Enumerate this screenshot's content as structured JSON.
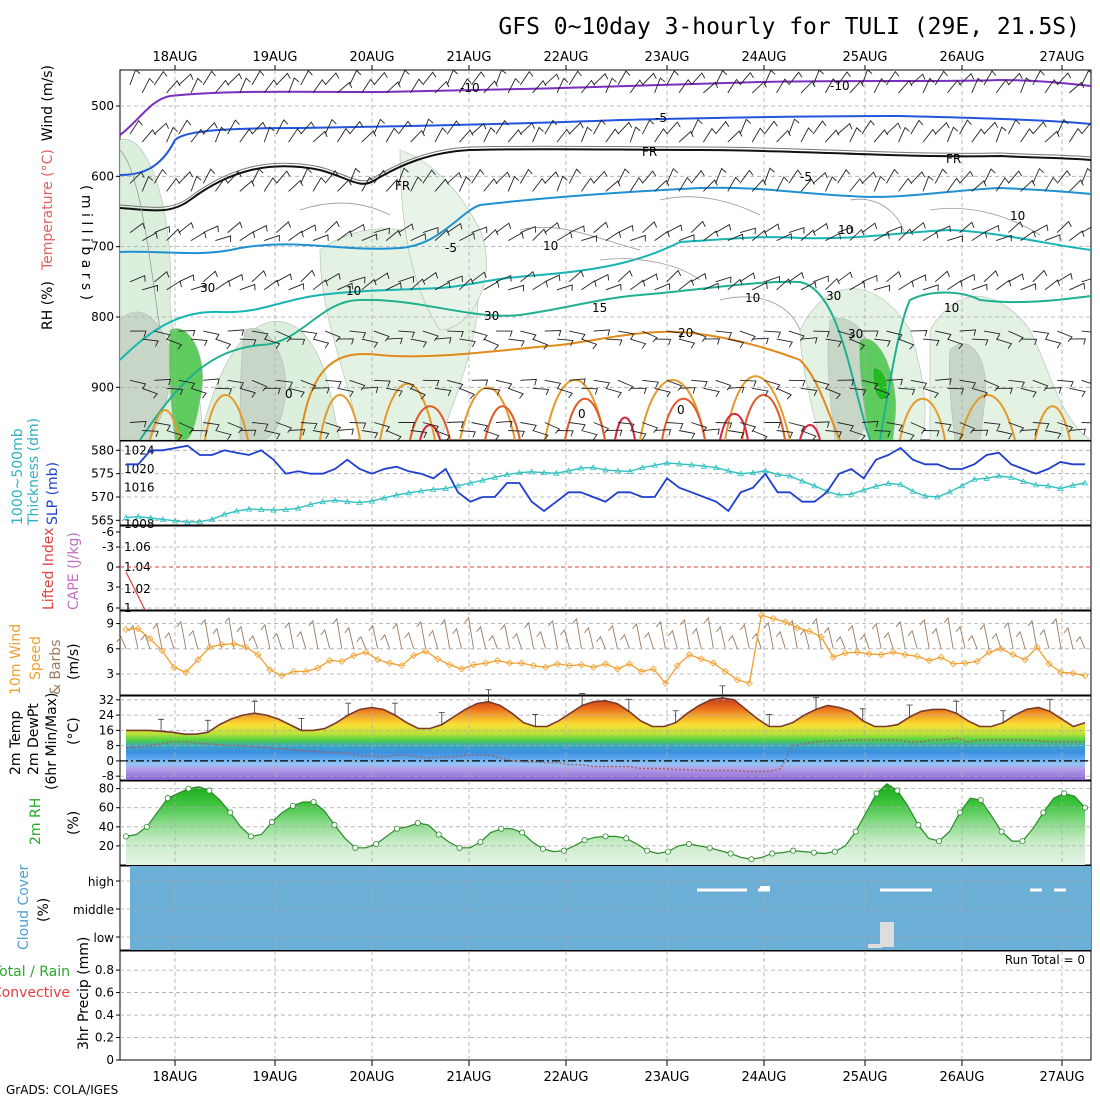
{
  "title": "GFS 0~10day 3-hourly for TULI (29E, 21.5S)",
  "credit": "GrADS: COLA/IGES",
  "dates": [
    "18AUG",
    "19AUG",
    "20AUG",
    "21AUG",
    "22AUG",
    "23AUG",
    "24AUG",
    "25AUG",
    "26AUG",
    "27AUG"
  ],
  "colors": {
    "slp": "#1f3fcf",
    "thickness": "#30c0c0",
    "lifted": "#e04040",
    "cape": "#c070c0",
    "wind_speed": "#f0a030",
    "barb": "#9a7a60",
    "dewpoint": "#a06060",
    "rh": "#3cbf3c",
    "cloud_bg": "#6baed6",
    "grid": "#aaaaaa"
  },
  "panels": {
    "upper": {
      "ylabel_wind": "Wind (m/s)",
      "ylabel_temp": "Temperature (°C)",
      "ylabel_rh": "RH (%)",
      "ylabel_mb": "( m i l l i b a r s )",
      "contour_labels": [
        "-10",
        "-10",
        "-5",
        "FR",
        "FR",
        "FR",
        "-5",
        "-5",
        "10",
        "10",
        "15",
        "20",
        "0",
        "0",
        "10",
        "30",
        "30",
        "10",
        "10",
        "10",
        "30",
        "0",
        "30"
      ]
    },
    "thickness": {
      "ylabel_a": "1000~500mb",
      "ylabel_b": "Thickness (dm)",
      "ylabel_c": "SLP (mb)"
    },
    "lifted": {
      "ylabel_a": "Lifted Index",
      "ylabel_b": "CAPE (J/kg)"
    },
    "wind": {
      "ylabel_a": "10m Wind",
      "ylabel_b": "Speed",
      "ylabel_c": "& Barbs",
      "unit": "(m/s)"
    },
    "temp": {
      "ylabel_a": "2m Temp",
      "ylabel_b": "2m DewPt",
      "ylabel_c": "(6hr Min/Max)",
      "unit": "(°C)"
    },
    "rh": {
      "ylabel_a": "2m RH",
      "unit": "(%)"
    },
    "cloud": {
      "ylabel_a": "Cloud Cover",
      "unit": "(%)",
      "levels": [
        "high",
        "middle",
        "low"
      ]
    },
    "precip": {
      "ylabel_a": "Total / Rain",
      "ylabel_b": "Convective",
      "ylabel_c": "3hr Precip (mm)",
      "run_total": "Run Total = 0"
    }
  },
  "chart_data": [
    {
      "type": "line",
      "title": "",
      "ylabel": "Thickness (dm)",
      "y_ticks": [
        "565",
        "570",
        "575",
        "580"
      ],
      "ylim": [
        564,
        582
      ],
      "series": [
        {
          "name": "1000~500mb Thickness (dm)",
          "values": [
            565.6,
            565.8,
            565.5,
            565.2,
            564.9,
            564.6,
            564.7,
            565.2,
            566.3,
            567.0,
            567.4,
            567.3,
            567.2,
            567.3,
            567.6,
            568.4,
            569.0,
            569.3,
            569.0,
            568.8,
            569.1,
            569.8,
            570.4,
            570.9,
            571.3,
            571.6,
            571.8,
            572.4,
            573.0,
            573.6,
            574.2,
            574.8,
            575.2,
            575.4,
            575.2,
            575.1,
            575.6,
            576.2,
            576.3,
            575.8,
            575.6,
            575.5,
            576.3,
            576.8,
            577.3,
            577.1,
            576.9,
            576.6,
            576.3,
            575.6,
            575.0,
            575.2,
            575.6,
            574.8,
            574.5,
            573.4,
            572.4,
            571.2,
            570.4,
            570.6,
            571.5,
            572.3,
            572.9,
            572.7,
            571.2,
            570.2,
            570.0,
            571.1,
            572.4,
            573.8,
            574.0,
            574.5,
            574.2,
            573.3,
            572.6,
            572.4,
            571.8,
            572.5,
            573.0
          ]
        }
      ]
    },
    {
      "type": "line",
      "title": "",
      "ylabel": "SLP (mb)",
      "y_ticks": [
        "1008",
        "1016",
        "1020",
        "1024"
      ],
      "ylim": [
        1008,
        1026
      ],
      "series": [
        {
          "name": "SLP (mb)",
          "values": [
            1021,
            1021,
            1024,
            1024,
            1024.5,
            1025,
            1023,
            1023,
            1024,
            1023.5,
            1023,
            1024,
            1022,
            1019,
            1019.5,
            1019,
            1019,
            1020,
            1022,
            1020,
            1019,
            1020,
            1020.5,
            1019.5,
            1019,
            1018,
            1020,
            1015,
            1013,
            1014,
            1014,
            1017,
            1017,
            1013,
            1011,
            1013,
            1015,
            1015,
            1014,
            1013,
            1015,
            1015,
            1014,
            1014,
            1018,
            1016,
            1015,
            1014,
            1013,
            1011,
            1015,
            1016,
            1019,
            1015,
            1015,
            1013,
            1013,
            1015,
            1019,
            1020,
            1018,
            1022,
            1023,
            1024.5,
            1022,
            1021,
            1021,
            1020,
            1020,
            1021,
            1023,
            1023.5,
            1021,
            1020,
            1019,
            1020,
            1021.5,
            1021,
            1021
          ]
        }
      ]
    },
    {
      "type": "line",
      "title": "",
      "ylabel": "Speed (m/s)",
      "y_ticks": [
        "3",
        "6",
        "9"
      ],
      "ylim": [
        0.5,
        10.5
      ],
      "series": [
        {
          "name": "10m Wind Speed",
          "values": [
            8.3,
            8.4,
            7.2,
            5.8,
            3.8,
            3.2,
            4.7,
            6.2,
            6.5,
            6.6,
            6.2,
            5.3,
            3.5,
            2.8,
            3.3,
            3.3,
            3.7,
            4.6,
            4.5,
            5.2,
            5.6,
            4.7,
            4.3,
            4.0,
            5.2,
            5.7,
            4.8,
            4.1,
            3.6,
            4.1,
            4.3,
            4.6,
            4.3,
            4.3,
            4.0,
            3.8,
            4.2,
            4.0,
            4.1,
            3.8,
            4.2,
            3.6,
            4.2,
            3.3,
            3.6,
            1.9,
            4.0,
            5.3,
            4.8,
            4.3,
            3.3,
            2.3,
            1.9,
            10.0,
            9.6,
            9.2,
            8.5,
            8.1,
            7.4,
            5.0,
            5.5,
            5.6,
            5.4,
            5.3,
            5.6,
            5.3,
            5.1,
            4.6,
            5.0,
            4.2,
            4.3,
            4.5,
            5.6,
            6.0,
            5.3,
            4.7,
            6.2,
            4.2,
            3.2,
            3.1,
            2.8
          ]
        }
      ]
    },
    {
      "type": "line",
      "title": "",
      "ylabel": "(°C)",
      "y_ticks": [
        "-8",
        "0",
        "8",
        "16",
        "24",
        "32"
      ],
      "ylim": [
        -10,
        34
      ],
      "series": [
        {
          "name": "2m Temp",
          "values": [
            16,
            16,
            16,
            15.5,
            15,
            14,
            14,
            15,
            19,
            22,
            24,
            25,
            24,
            22,
            19,
            16,
            16,
            17,
            20,
            24,
            27,
            28,
            27,
            24,
            20,
            17,
            17,
            19,
            23,
            27,
            30,
            31,
            29,
            25,
            20,
            18,
            18,
            21,
            25,
            29,
            31,
            31.5,
            30,
            26,
            21,
            18,
            18,
            20,
            25,
            29,
            32,
            33,
            32,
            27,
            22,
            18,
            18,
            20,
            24,
            27,
            29,
            28,
            26,
            21,
            18,
            18,
            19,
            23,
            26,
            27,
            27,
            25,
            21,
            18,
            18,
            20,
            24,
            27,
            28,
            26,
            22,
            18,
            20
          ]
        },
        {
          "name": "2m DewPt",
          "values": [
            7,
            7.2,
            8,
            9,
            10,
            10,
            9.5,
            9,
            8.5,
            8,
            8,
            7.5,
            7,
            6.5,
            6,
            5.5,
            5,
            4.5,
            4.5,
            4,
            2.5,
            2.5,
            2,
            3,
            3,
            2,
            1.5,
            2,
            2,
            3,
            3,
            3,
            1.5,
            0,
            -0.5,
            -0.5,
            -1,
            -1,
            -2,
            -2,
            -3,
            -3,
            -3,
            -3,
            -4,
            -4,
            -4,
            -4.5,
            -4.5,
            -5,
            -5,
            -5,
            -5,
            -5.5,
            -5.5,
            -5.5,
            -4,
            8,
            9,
            10,
            10.5,
            10.5,
            11,
            11,
            11,
            11,
            11,
            10,
            10,
            11,
            11,
            12,
            10,
            11,
            11,
            11,
            11,
            11,
            10.5,
            10,
            10,
            10,
            10
          ]
        }
      ]
    },
    {
      "type": "area",
      "title": "",
      "ylabel": "(%)",
      "y_ticks": [
        "20",
        "40",
        "60",
        "80"
      ],
      "ylim": [
        0,
        88
      ],
      "series": [
        {
          "name": "2m RH",
          "values": [
            30,
            32,
            40,
            55,
            70,
            75,
            80,
            82,
            78,
            68,
            55,
            40,
            30,
            32,
            45,
            55,
            62,
            66,
            66,
            57,
            42,
            28,
            18,
            18,
            22,
            30,
            38,
            40,
            44,
            42,
            32,
            24,
            18,
            18,
            24,
            34,
            38,
            38,
            34,
            24,
            17,
            14,
            15,
            20,
            26,
            29,
            30,
            30,
            28,
            22,
            15,
            12,
            14,
            20,
            22,
            20,
            18,
            15,
            12,
            8,
            6,
            8,
            12,
            13,
            15,
            14,
            13,
            12,
            14,
            20,
            35,
            55,
            75,
            85,
            78,
            62,
            42,
            28,
            25,
            35,
            55,
            70,
            68,
            52,
            35,
            25,
            25,
            38,
            55,
            70,
            75,
            72,
            60
          ]
        }
      ]
    }
  ]
}
